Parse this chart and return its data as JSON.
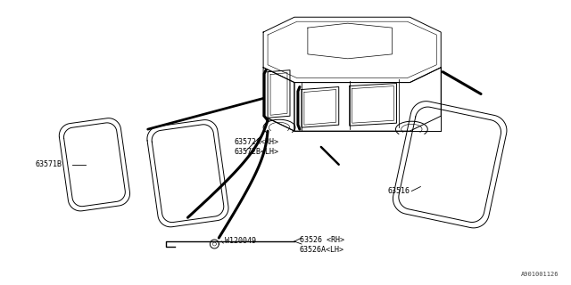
{
  "bg_color": "#ffffff",
  "line_color": "#000000",
  "fig_width": 6.4,
  "fig_height": 3.2,
  "dpi": 100,
  "label_63571B": "63571B",
  "label_63572": "63572A<RH>\n63572B<LH>",
  "label_63516": "63516",
  "label_W120049": "W120049",
  "label_63526": "63526 <RH>\n63526A<LH>",
  "label_diagram": "A901001126",
  "font_size": 6.0,
  "font_size_small": 5.0
}
